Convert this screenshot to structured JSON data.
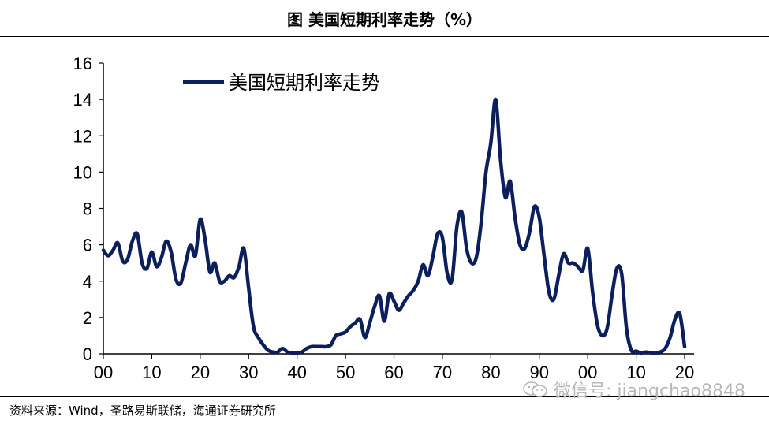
{
  "header": {
    "title": "图  美国短期利率走势（%）"
  },
  "footer": {
    "source": "资料来源：Wind，圣路易斯联储，海通证券研究所",
    "watermark": "微信号: jiangchao8848",
    "watermark_icon": "wechat-icon"
  },
  "colors": {
    "line": "#0b1f5c",
    "axis": "#000000"
  },
  "chart_data": {
    "type": "line",
    "title": "",
    "xlabel": "",
    "ylabel": "",
    "x_tick_labels": [
      "00",
      "10",
      "20",
      "30",
      "40",
      "50",
      "60",
      "70",
      "80",
      "90",
      "00",
      "10",
      "20"
    ],
    "y_ticks": [
      0,
      2,
      4,
      6,
      8,
      10,
      12,
      14,
      16
    ],
    "ylim": [
      0,
      16
    ],
    "xlim": [
      1900,
      2021
    ],
    "grid": false,
    "legend": {
      "position": "top-left",
      "entries": [
        "美国短期利率走势"
      ]
    },
    "series": [
      {
        "name": "美国短期利率走势",
        "x": [
          1900,
          1901,
          1902,
          1903,
          1904,
          1905,
          1906,
          1907,
          1908,
          1909,
          1910,
          1911,
          1912,
          1913,
          1914,
          1915,
          1916,
          1917,
          1918,
          1919,
          1920,
          1921,
          1922,
          1923,
          1924,
          1925,
          1926,
          1927,
          1928,
          1929,
          1930,
          1931,
          1932,
          1933,
          1934,
          1935,
          1936,
          1937,
          1938,
          1939,
          1940,
          1941,
          1942,
          1943,
          1944,
          1945,
          1946,
          1947,
          1948,
          1949,
          1950,
          1951,
          1952,
          1953,
          1954,
          1955,
          1956,
          1957,
          1958,
          1959,
          1960,
          1961,
          1962,
          1963,
          1964,
          1965,
          1966,
          1967,
          1968,
          1969,
          1970,
          1971,
          1972,
          1973,
          1974,
          1975,
          1976,
          1977,
          1978,
          1979,
          1980,
          1981,
          1982,
          1983,
          1984,
          1985,
          1986,
          1987,
          1988,
          1989,
          1990,
          1991,
          1992,
          1993,
          1994,
          1995,
          1996,
          1997,
          1998,
          1999,
          2000,
          2001,
          2002,
          2003,
          2004,
          2005,
          2006,
          2007,
          2008,
          2009,
          2010,
          2011,
          2012,
          2013,
          2014,
          2015,
          2016,
          2017,
          2018,
          2019,
          2020
        ],
        "values": [
          5.7,
          5.4,
          5.7,
          6.1,
          5.1,
          5.2,
          6.2,
          6.6,
          5.0,
          4.7,
          5.6,
          4.8,
          5.3,
          6.2,
          5.6,
          4.1,
          3.9,
          5.0,
          6.0,
          5.4,
          7.4,
          6.3,
          4.5,
          5.0,
          4.0,
          4.0,
          4.3,
          4.2,
          4.8,
          5.8,
          3.6,
          1.5,
          0.9,
          0.5,
          0.2,
          0.1,
          0.1,
          0.3,
          0.1,
          0.05,
          0.05,
          0.1,
          0.3,
          0.4,
          0.4,
          0.4,
          0.4,
          0.5,
          1.0,
          1.1,
          1.2,
          1.5,
          1.7,
          1.9,
          0.9,
          1.7,
          2.6,
          3.2,
          1.8,
          3.3,
          2.9,
          2.4,
          2.8,
          3.2,
          3.5,
          4.0,
          4.9,
          4.3,
          5.3,
          6.6,
          6.4,
          4.4,
          4.1,
          7.0,
          7.8,
          5.8,
          5.0,
          5.3,
          7.2,
          10.0,
          11.6,
          14.0,
          10.7,
          8.6,
          9.5,
          7.5,
          6.0,
          5.8,
          6.7,
          8.1,
          7.5,
          5.4,
          3.4,
          3.0,
          4.3,
          5.5,
          5.0,
          5.0,
          4.8,
          4.6,
          5.8,
          3.4,
          1.6,
          1.0,
          1.4,
          3.2,
          4.7,
          4.4,
          1.4,
          0.2,
          0.15,
          0.05,
          0.1,
          0.06,
          0.03,
          0.1,
          0.3,
          0.9,
          1.9,
          2.2,
          0.4
        ]
      }
    ]
  }
}
